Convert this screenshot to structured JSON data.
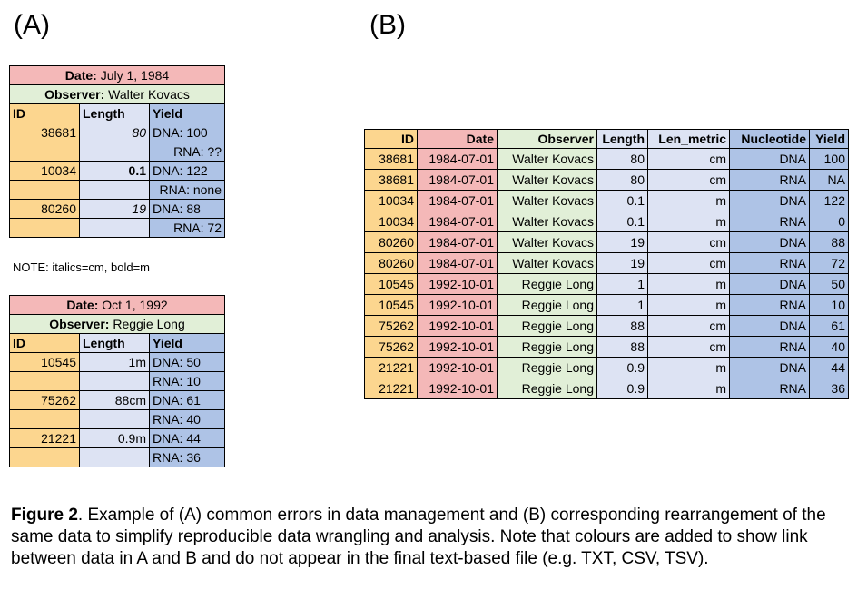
{
  "labels": {
    "a": "(A)",
    "b": "(B)"
  },
  "table_a1": {
    "date_label": "Date:",
    "date_value": "July 1, 1984",
    "observer_label": "Observer:",
    "observer_value": "Walter Kovacs",
    "headers": [
      "ID",
      "Length",
      "Yield"
    ],
    "rows": [
      [
        "38681",
        "80",
        "DNA: 100"
      ],
      [
        "",
        "",
        "RNA: ??"
      ],
      [
        "10034",
        "0.1",
        "DNA: 122"
      ],
      [
        "",
        "",
        "RNA: none"
      ],
      [
        "80260",
        "19",
        "DNA: 88"
      ],
      [
        "",
        "",
        "RNA: 72"
      ]
    ]
  },
  "note": "NOTE: italics=cm, bold=m",
  "table_a2": {
    "date_label": "Date:",
    "date_value": "Oct 1, 1992",
    "observer_label": "Observer:",
    "observer_value": "Reggie Long",
    "headers": [
      "ID",
      "Length",
      "Yield"
    ],
    "rows": [
      [
        "10545",
        "1m",
        "DNA: 50"
      ],
      [
        "",
        "",
        "RNA: 10"
      ],
      [
        "75262",
        "88cm",
        "DNA: 61"
      ],
      [
        "",
        "",
        "RNA: 40"
      ],
      [
        "21221",
        "0.9m",
        "DNA: 44"
      ],
      [
        "",
        "",
        "RNA: 36"
      ]
    ]
  },
  "table_b": {
    "headers": [
      "ID",
      "Date",
      "Observer",
      "Length",
      "Len_metric",
      "Nucleotide",
      "Yield"
    ],
    "rows": [
      [
        "38681",
        "1984-07-01",
        "Walter Kovacs",
        "80",
        "cm",
        "DNA",
        "100"
      ],
      [
        "38681",
        "1984-07-01",
        "Walter Kovacs",
        "80",
        "cm",
        "RNA",
        "NA"
      ],
      [
        "10034",
        "1984-07-01",
        "Walter Kovacs",
        "0.1",
        "m",
        "DNA",
        "122"
      ],
      [
        "10034",
        "1984-07-01",
        "Walter Kovacs",
        "0.1",
        "m",
        "RNA",
        "0"
      ],
      [
        "80260",
        "1984-07-01",
        "Walter Kovacs",
        "19",
        "cm",
        "DNA",
        "88"
      ],
      [
        "80260",
        "1984-07-01",
        "Walter Kovacs",
        "19",
        "cm",
        "RNA",
        "72"
      ],
      [
        "10545",
        "1992-10-01",
        "Reggie Long",
        "1",
        "m",
        "DNA",
        "50"
      ],
      [
        "10545",
        "1992-10-01",
        "Reggie Long",
        "1",
        "m",
        "RNA",
        "10"
      ],
      [
        "75262",
        "1992-10-01",
        "Reggie Long",
        "88",
        "cm",
        "DNA",
        "61"
      ],
      [
        "75262",
        "1992-10-01",
        "Reggie Long",
        "88",
        "cm",
        "RNA",
        "40"
      ],
      [
        "21221",
        "1992-10-01",
        "Reggie Long",
        "0.9",
        "m",
        "DNA",
        "44"
      ],
      [
        "21221",
        "1992-10-01",
        "Reggie Long",
        "0.9",
        "m",
        "RNA",
        "36"
      ]
    ]
  },
  "caption": {
    "label": "Figure 2",
    "text": ". Example of (A) common errors in data management and (B) corresponding rearrangement of the same data to simplify reproducible data wrangling and analysis. Note that colours are added to show link between data in A and B and do not appear in the final text-based file (e.g. TXT, CSV, TSV)."
  }
}
